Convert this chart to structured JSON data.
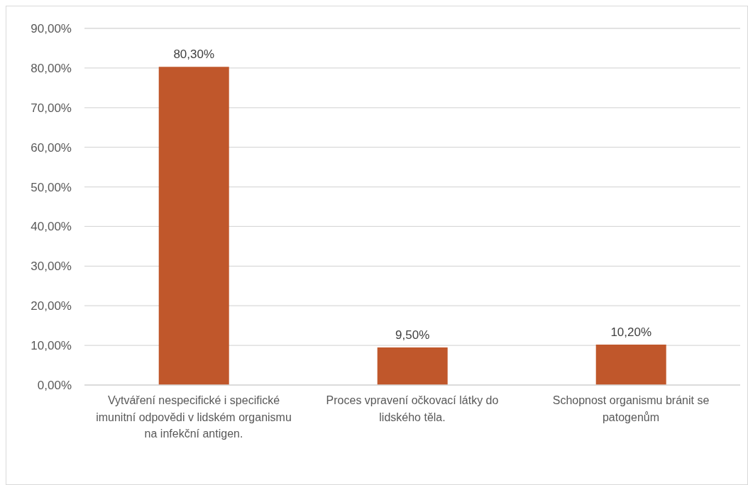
{
  "chart_data": {
    "type": "bar",
    "categories": [
      "Vytváření nespecifické i specifické imunitní odpovědi v lidském organismu na infekční antigen.",
      "Proces vpravení očkovací látky do lidského těla.",
      "Schopnost organismu bránit se patogenům"
    ],
    "values": [
      80.3,
      9.5,
      10.2
    ],
    "color": "#c0572b",
    "value_labels": [
      "80,30%",
      "9,50%",
      "10,20%"
    ],
    "ylim": [
      0,
      90
    ],
    "yticks": [
      {
        "value": 0,
        "label": "0,00%"
      },
      {
        "value": 10,
        "label": "10,00%"
      },
      {
        "value": 20,
        "label": "20,00%"
      },
      {
        "value": 30,
        "label": "30,00%"
      },
      {
        "value": 40,
        "label": "40,00%"
      },
      {
        "value": 50,
        "label": "50,00%"
      },
      {
        "value": 60,
        "label": "60,00%"
      },
      {
        "value": 70,
        "label": "70,00%"
      },
      {
        "value": 80,
        "label": "80,00%"
      },
      {
        "value": 90,
        "label": "90,00%"
      }
    ],
    "grid": "y"
  }
}
